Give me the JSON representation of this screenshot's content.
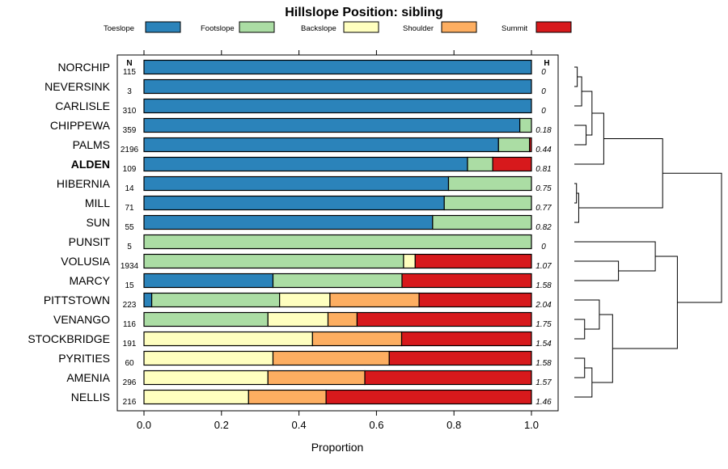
{
  "chart_data": {
    "type": "bar",
    "orientation": "horizontal",
    "stacked": true,
    "title": "Hillslope Position: sibling",
    "xlabel": "Proportion",
    "ylabel": "",
    "xlim": [
      0,
      1
    ],
    "xticks": [
      0.0,
      0.2,
      0.4,
      0.6,
      0.8,
      1.0
    ],
    "xtick_labels": [
      "0.0",
      "0.2",
      "0.4",
      "0.6",
      "0.8",
      "1.0"
    ],
    "n_header": "N",
    "h_header": "H",
    "highlight": "ALDEN",
    "legend_position": "top",
    "series": [
      {
        "name": "Toeslope",
        "color": "#2b83ba"
      },
      {
        "name": "Footslope",
        "color": "#abdda4"
      },
      {
        "name": "Backslope",
        "color": "#ffffbf"
      },
      {
        "name": "Shoulder",
        "color": "#fdae61"
      },
      {
        "name": "Summit",
        "color": "#d7191c"
      }
    ],
    "categories": [
      "NORCHIP",
      "NEVERSINK",
      "CARLISLE",
      "CHIPPEWA",
      "PALMS",
      "ALDEN",
      "HIBERNIA",
      "MILL",
      "SUN",
      "PUNSIT",
      "VOLUSIA",
      "MARCY",
      "PITTSTOWN",
      "VENANGO",
      "STOCKBRIDGE",
      "PYRITIES",
      "AMENIA",
      "NELLIS"
    ],
    "n": [
      "115",
      "3",
      "310",
      "359",
      "2196",
      "109",
      "14",
      "71",
      "55",
      "5",
      "1934",
      "15",
      "223",
      "116",
      "191",
      "60",
      "296",
      "216"
    ],
    "h": [
      "0",
      "0",
      "0",
      "0.18",
      "0.44",
      "0.81",
      "0.75",
      "0.77",
      "0.82",
      "0",
      "1.07",
      "1.58",
      "2.04",
      "1.75",
      "1.54",
      "1.58",
      "1.57",
      "1.46"
    ],
    "proportions": [
      [
        1.0,
        0,
        0,
        0,
        0
      ],
      [
        1.0,
        0,
        0,
        0,
        0
      ],
      [
        1.0,
        0,
        0,
        0,
        0
      ],
      [
        0.97,
        0.03,
        0,
        0,
        0
      ],
      [
        0.915,
        0.08,
        0,
        0,
        0.005
      ],
      [
        0.835,
        0.065,
        0,
        0,
        0.1
      ],
      [
        0.786,
        0.214,
        0,
        0,
        0
      ],
      [
        0.775,
        0.225,
        0,
        0,
        0
      ],
      [
        0.745,
        0.255,
        0,
        0,
        0
      ],
      [
        0,
        1.0,
        0,
        0,
        0
      ],
      [
        0,
        0.67,
        0.03,
        0,
        0.3
      ],
      [
        0.333,
        0.333,
        0,
        0,
        0.334
      ],
      [
        0.02,
        0.33,
        0.13,
        0.23,
        0.29
      ],
      [
        0,
        0.32,
        0.155,
        0.075,
        0.45
      ],
      [
        0,
        0,
        0.435,
        0.23,
        0.335
      ],
      [
        0,
        0,
        0.333,
        0.3,
        0.367
      ],
      [
        0,
        0,
        0.32,
        0.25,
        0.43
      ],
      [
        0,
        0,
        0.27,
        0.2,
        0.53
      ]
    ],
    "dendrogram": {
      "merges": [
        [
          0,
          1,
          0.02
        ],
        [
          18,
          2,
          0.05
        ],
        [
          3,
          4,
          0.08
        ],
        [
          19,
          20,
          0.12
        ],
        [
          21,
          5,
          0.2
        ],
        [
          6,
          7,
          0.015
        ],
        [
          23,
          8,
          0.03
        ],
        [
          22,
          24,
          0.6
        ],
        [
          10,
          11,
          0.3
        ],
        [
          15,
          16,
          0.07
        ],
        [
          27,
          17,
          0.12
        ],
        [
          13,
          14,
          0.07
        ],
        [
          12,
          29,
          0.17
        ],
        [
          28,
          30,
          0.26
        ],
        [
          26,
          9,
          0.55
        ],
        [
          31,
          32,
          0.7
        ],
        [
          25,
          33,
          1.0
        ]
      ],
      "max_height": 1.0
    }
  }
}
